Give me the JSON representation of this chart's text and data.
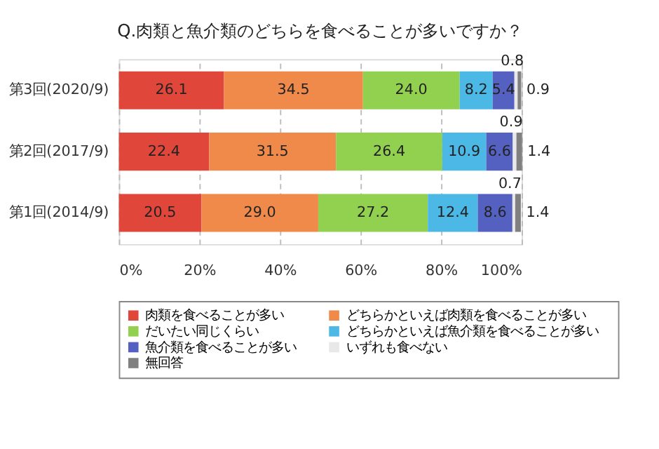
{
  "chart_data": {
    "type": "bar",
    "orientation": "horizontal",
    "stacked": true,
    "title": "Q.肉類と魚介類のどちらを食べることが多いですか？",
    "categories": [
      "第3回(2020/9)",
      "第2回(2017/9)",
      "第1回(2014/9)"
    ],
    "series": [
      {
        "name": "肉類を食べることが多い",
        "color": "#e0473a",
        "values": [
          26.1,
          22.4,
          20.5
        ],
        "value_labels": [
          "26.1",
          "22.4",
          "20.5"
        ]
      },
      {
        "name": "どちらかといえば肉類を食べることが多い",
        "color": "#f08a4b",
        "values": [
          34.5,
          31.5,
          29.0
        ],
        "value_labels": [
          "34.5",
          "31.5",
          "29.0"
        ]
      },
      {
        "name": "だいたい同じくらい",
        "color": "#92d050",
        "values": [
          24.0,
          26.4,
          27.2
        ],
        "value_labels": [
          "24.0",
          "26.4",
          "27.2"
        ]
      },
      {
        "name": "どちらかといえば魚介類を食べることが多い",
        "color": "#4bb8e6",
        "values": [
          8.2,
          10.9,
          12.4
        ],
        "value_labels": [
          "8.2",
          "10.9",
          "12.4"
        ]
      },
      {
        "name": "魚介類を食べることが多い",
        "color": "#5561c0",
        "values": [
          5.4,
          6.6,
          8.6
        ],
        "value_labels": [
          "5.4",
          "6.6",
          "8.6"
        ]
      },
      {
        "name": "いずれも食べない",
        "color": "#e8e8e8",
        "values": [
          0.8,
          0.9,
          0.7
        ],
        "value_labels": [
          "0.8",
          "0.9",
          "0.7"
        ]
      },
      {
        "name": "無回答",
        "color": "#808080",
        "values": [
          0.9,
          1.4,
          1.4
        ],
        "value_labels": [
          "0.9",
          "1.4",
          "1.4"
        ]
      }
    ],
    "xlim": [
      0,
      100
    ],
    "xticks": [
      {
        "value": 0,
        "label": "0%"
      },
      {
        "value": 20,
        "label": "20%"
      },
      {
        "value": 40,
        "label": "40%"
      },
      {
        "value": 60,
        "label": "60%"
      },
      {
        "value": 80,
        "label": "80%"
      },
      {
        "value": 100,
        "label": "100%"
      }
    ],
    "grid": "x",
    "legend": "bottom"
  }
}
